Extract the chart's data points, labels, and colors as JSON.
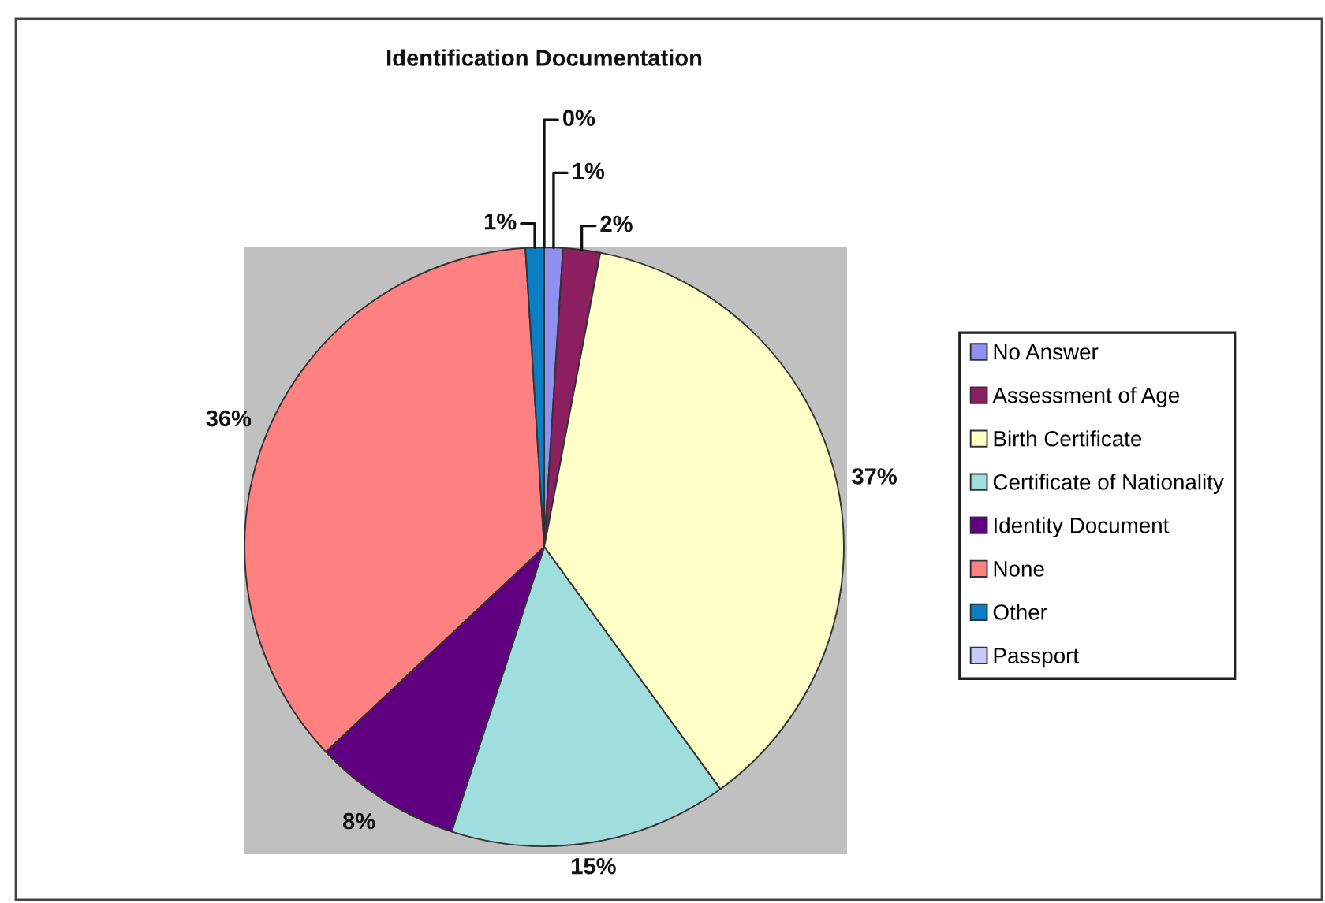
{
  "chart_data": {
    "type": "pie",
    "title": "Identification Documentation",
    "categories": [
      "No Answer",
      "Assessment of Age",
      "Birth Certificate",
      "Certificate of Nationality",
      "Identity Document",
      "None",
      "Other",
      "Passport"
    ],
    "values": [
      1,
      2,
      37,
      15,
      8,
      36,
      1,
      0
    ],
    "colors": [
      "#9090f0",
      "#8b1f5f",
      "#ffffc8",
      "#a0dede",
      "#600080",
      "#ff8080",
      "#0a7ec0",
      "#c8c8ff"
    ],
    "value_labels": [
      "1%",
      "2%",
      "37%",
      "15%",
      "8%",
      "36%",
      "1%",
      "0%"
    ],
    "legend": "right"
  }
}
